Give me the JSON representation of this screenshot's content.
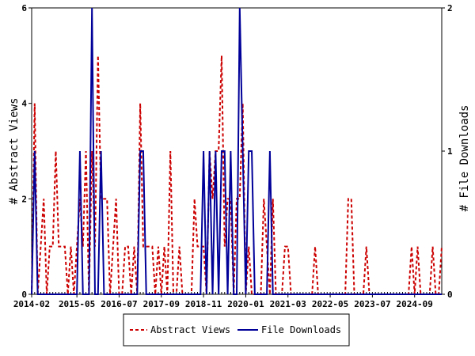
{
  "chart_data": {
    "type": "line",
    "title": "",
    "ylabel_left": "# Abstract Views",
    "ylabel_right": "# File Downloads",
    "x_tick_labels": [
      "2014-02",
      "2015-05",
      "2016-07",
      "2017-09",
      "2018-11",
      "2020-01",
      "2021-03",
      "2022-05",
      "2023-07",
      "2024-09"
    ],
    "y_left_ticks": [
      "0",
      "2",
      "4",
      "6"
    ],
    "y_right_ticks": [
      "0",
      "1",
      "2"
    ],
    "y_left_range": [
      0,
      6
    ],
    "y_right_range": [
      0,
      2
    ],
    "x_range": [
      "2014-02",
      "2025-06"
    ],
    "grid": false,
    "legend_position": "bottom-center",
    "series": [
      {
        "name": "Abstract Views",
        "color": "#cc0000",
        "style": "dashed",
        "axis": "left",
        "x": [
          "2014-02",
          "2014-03",
          "2014-04",
          "2014-05",
          "2014-06",
          "2014-07",
          "2014-08",
          "2014-09",
          "2014-10",
          "2014-11",
          "2014-12",
          "2015-01",
          "2015-02",
          "2015-03",
          "2015-04",
          "2015-05",
          "2015-06",
          "2015-07",
          "2015-08",
          "2015-09",
          "2015-10",
          "2015-11",
          "2015-12",
          "2016-01",
          "2016-02",
          "2016-03",
          "2016-04",
          "2016-05",
          "2016-06",
          "2016-07",
          "2016-08",
          "2016-09",
          "2016-10",
          "2016-11",
          "2016-12",
          "2017-01",
          "2017-02",
          "2017-03",
          "2017-04",
          "2017-05",
          "2017-06",
          "2017-07",
          "2017-08",
          "2017-09",
          "2017-10",
          "2017-11",
          "2017-12",
          "2018-01",
          "2018-02",
          "2018-03",
          "2018-04",
          "2018-05",
          "2018-06",
          "2018-07",
          "2018-08",
          "2018-09",
          "2018-10",
          "2018-11",
          "2018-12",
          "2019-01",
          "2019-02",
          "2019-03",
          "2019-04",
          "2019-05",
          "2019-06",
          "2019-07",
          "2019-08",
          "2019-09",
          "2019-10",
          "2019-11",
          "2019-12",
          "2020-01",
          "2020-02",
          "2020-03",
          "2020-04",
          "2020-05",
          "2020-06",
          "2020-07",
          "2020-08",
          "2020-09",
          "2020-10",
          "2020-11",
          "2020-12",
          "2021-01",
          "2021-02",
          "2021-03",
          "2021-04",
          "2021-05",
          "2021-06",
          "2021-07",
          "2021-08",
          "2021-09",
          "2021-10",
          "2021-11",
          "2021-12",
          "2022-01",
          "2022-02",
          "2022-03",
          "2022-04",
          "2022-05",
          "2022-06",
          "2022-07",
          "2022-08",
          "2022-09",
          "2022-10",
          "2022-11",
          "2022-12",
          "2023-01",
          "2023-02",
          "2023-03",
          "2023-04",
          "2023-05",
          "2023-06",
          "2023-07",
          "2023-08",
          "2023-09",
          "2023-10",
          "2023-11",
          "2023-12",
          "2024-01",
          "2024-02",
          "2024-03",
          "2024-04",
          "2024-05",
          "2024-06",
          "2024-07",
          "2024-08",
          "2024-09",
          "2024-10",
          "2024-11",
          "2024-12",
          "2025-01",
          "2025-02",
          "2025-03",
          "2025-04",
          "2025-05",
          "2025-06"
        ],
        "values": [
          0,
          4,
          0,
          1,
          2,
          0,
          1,
          1,
          3,
          1,
          1,
          1,
          0,
          1,
          0,
          1,
          2,
          1,
          3,
          0,
          3,
          1,
          5,
          2,
          2,
          2,
          0,
          1,
          2,
          0,
          0,
          1,
          1,
          0,
          1,
          0,
          4,
          1,
          1,
          1,
          1,
          0,
          1,
          0,
          1,
          0,
          3,
          0,
          0,
          1,
          0,
          0,
          0,
          0,
          2,
          1,
          1,
          1,
          0,
          3,
          2,
          3,
          3,
          5,
          1,
          2,
          2,
          0,
          2,
          2,
          4,
          0,
          1,
          0,
          0,
          0,
          0,
          2,
          1,
          0,
          2,
          0,
          0,
          0,
          1,
          1,
          0,
          0,
          0,
          0,
          0,
          0,
          0,
          0,
          1,
          0,
          0,
          0,
          0,
          0,
          0,
          0,
          0,
          0,
          0,
          2,
          2,
          0,
          0,
          0,
          0,
          1,
          0,
          0,
          0,
          0,
          0,
          0,
          0,
          0,
          0,
          0,
          0,
          0,
          0,
          0,
          1,
          0,
          1,
          0,
          0,
          0,
          0,
          1,
          0,
          0,
          1
        ]
      },
      {
        "name": "File Downloads",
        "color": "#000099",
        "style": "solid",
        "axis": "right",
        "x": [
          "2014-02",
          "2014-03",
          "2014-04",
          "2014-05",
          "2014-06",
          "2014-07",
          "2014-08",
          "2014-09",
          "2014-10",
          "2014-11",
          "2014-12",
          "2015-01",
          "2015-02",
          "2015-03",
          "2015-04",
          "2015-05",
          "2015-06",
          "2015-07",
          "2015-08",
          "2015-09",
          "2015-10",
          "2015-11",
          "2015-12",
          "2016-01",
          "2016-02",
          "2016-03",
          "2016-04",
          "2016-05",
          "2016-06",
          "2016-07",
          "2016-08",
          "2016-09",
          "2016-10",
          "2016-11",
          "2016-12",
          "2017-01",
          "2017-02",
          "2017-03",
          "2017-04",
          "2017-05",
          "2017-06",
          "2017-07",
          "2017-08",
          "2017-09",
          "2017-10",
          "2017-11",
          "2017-12",
          "2018-01",
          "2018-02",
          "2018-03",
          "2018-04",
          "2018-05",
          "2018-06",
          "2018-07",
          "2018-08",
          "2018-09",
          "2018-10",
          "2018-11",
          "2018-12",
          "2019-01",
          "2019-02",
          "2019-03",
          "2019-04",
          "2019-05",
          "2019-06",
          "2019-07",
          "2019-08",
          "2019-09",
          "2019-10",
          "2019-11",
          "2019-12",
          "2020-01",
          "2020-02",
          "2020-03",
          "2020-04",
          "2020-05",
          "2020-06",
          "2020-07",
          "2020-08",
          "2020-09",
          "2020-10",
          "2020-11",
          "2020-12",
          "2021-01",
          "2021-02",
          "2021-03",
          "2021-04",
          "2021-05",
          "2021-06",
          "2021-07",
          "2021-08",
          "2021-09",
          "2021-10",
          "2021-11",
          "2021-12",
          "2022-01",
          "2022-02",
          "2022-03",
          "2022-04",
          "2022-05",
          "2022-06",
          "2022-07",
          "2022-08",
          "2022-09",
          "2022-10",
          "2022-11",
          "2022-12",
          "2023-01",
          "2023-02",
          "2023-03",
          "2023-04",
          "2023-05",
          "2023-06",
          "2023-07",
          "2023-08",
          "2023-09",
          "2023-10",
          "2023-11",
          "2023-12",
          "2024-01",
          "2024-02",
          "2024-03",
          "2024-04",
          "2024-05",
          "2024-06",
          "2024-07",
          "2024-08",
          "2024-09",
          "2024-10",
          "2024-11",
          "2024-12",
          "2025-01",
          "2025-02",
          "2025-03",
          "2025-04",
          "2025-05",
          "2025-06"
        ],
        "values": [
          0,
          1,
          0,
          0,
          0,
          0,
          0,
          0,
          0,
          0,
          0,
          0,
          0,
          0,
          0,
          0,
          1,
          0,
          0,
          0,
          2,
          0,
          0,
          1,
          0,
          0,
          0,
          0,
          0,
          0,
          0,
          0,
          0,
          0,
          0,
          0,
          1,
          1,
          0,
          0,
          0,
          0,
          0,
          0,
          0,
          0,
          0,
          0,
          0,
          0,
          0,
          0,
          0,
          0,
          0,
          0,
          0,
          1,
          0,
          1,
          0,
          1,
          0,
          1,
          1,
          0,
          1,
          0,
          0,
          2,
          1,
          0,
          1,
          1,
          0,
          0,
          0,
          0,
          0,
          1,
          0,
          0,
          0,
          0,
          0,
          0,
          0,
          0,
          0,
          0,
          0,
          0,
          0,
          0,
          0,
          0,
          0,
          0,
          0,
          0,
          0,
          0,
          0,
          0,
          0,
          0,
          0,
          0,
          0,
          0,
          0,
          0,
          0,
          0,
          0,
          0,
          0,
          0,
          0,
          0,
          0,
          0,
          0,
          0,
          0,
          0,
          0,
          0,
          0,
          0,
          0,
          0,
          0,
          0,
          0,
          0,
          0
        ]
      }
    ]
  }
}
